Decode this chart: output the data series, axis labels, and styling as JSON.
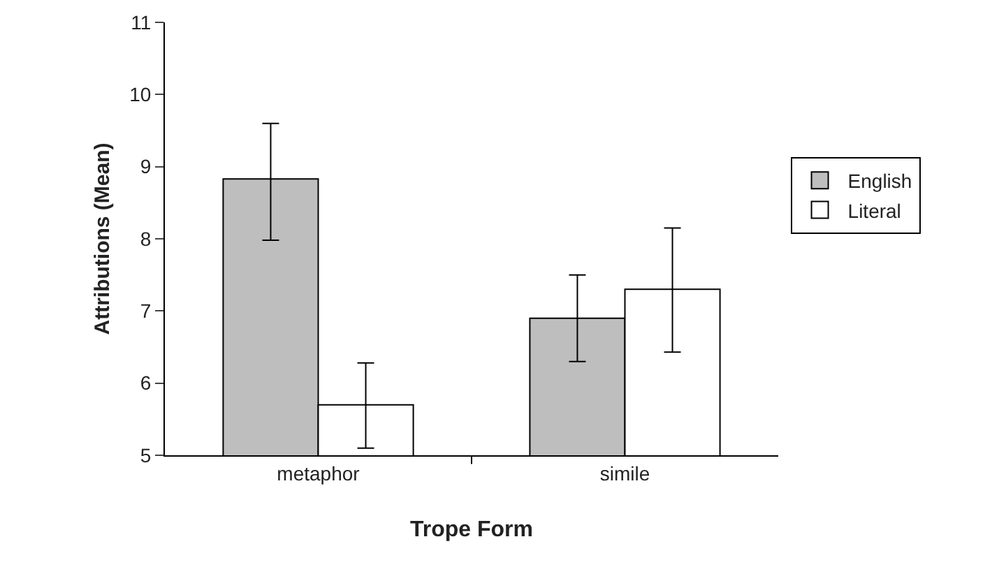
{
  "chart_data": {
    "type": "bar",
    "xlabel": "Trope Form",
    "ylabel": "Attributions (Mean)",
    "categories": [
      "metaphor",
      "simile"
    ],
    "series": [
      {
        "name": "English",
        "color": "#bebebe",
        "values": [
          8.83,
          6.9
        ],
        "errors": [
          [
            7.98,
            9.6
          ],
          [
            6.3,
            7.5
          ]
        ]
      },
      {
        "name": "Literal",
        "color": "#ffffff",
        "values": [
          5.7,
          7.3
        ],
        "errors": [
          [
            5.1,
            6.28
          ],
          [
            6.43,
            8.15
          ]
        ]
      }
    ],
    "ylim": [
      5,
      11
    ],
    "yticks": [
      5,
      6,
      7,
      8,
      9,
      10,
      11
    ],
    "grid": false,
    "legend": "right"
  }
}
